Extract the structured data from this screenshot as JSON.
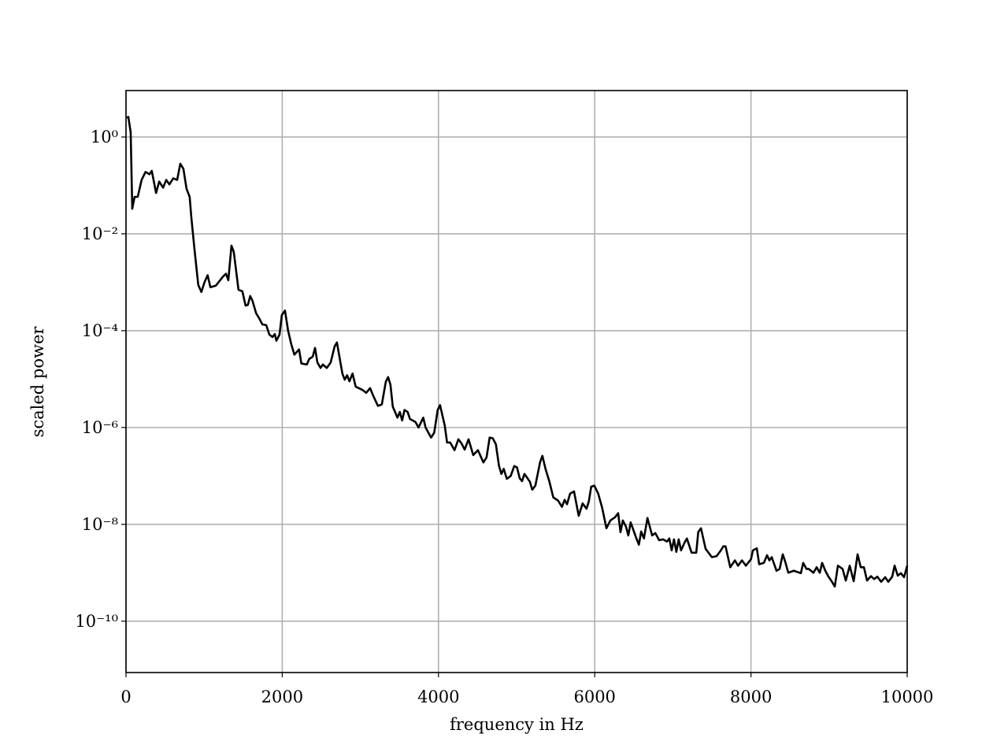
{
  "chart_data": {
    "type": "line",
    "xlabel": "frequency in Hz",
    "ylabel": "scaled power",
    "color": "#000000",
    "log_y": true,
    "grid": true,
    "xlim": [
      0,
      10000
    ],
    "xticks": [
      0,
      2000,
      4000,
      6000,
      8000,
      10000
    ],
    "ylim": [
      8.7e-12,
      9.1
    ],
    "yticks": [
      {
        "value": 1,
        "label": "10⁰"
      },
      {
        "value": 0.01,
        "label": "10⁻²"
      },
      {
        "value": 0.0001,
        "label": "10⁻⁴"
      },
      {
        "value": 1e-06,
        "label": "10⁻⁶"
      },
      {
        "value": 1e-08,
        "label": "10⁻⁸"
      },
      {
        "value": 1e-10,
        "label": "10⁻¹⁰"
      }
    ],
    "x": [
      10,
      30,
      60,
      80,
      110,
      150,
      200,
      250,
      300,
      330,
      385,
      425,
      475,
      515,
      555,
      605,
      655,
      695,
      735,
      775,
      815,
      835,
      875,
      925,
      965,
      1005,
      1045,
      1080,
      1150,
      1240,
      1280,
      1310,
      1350,
      1380,
      1440,
      1490,
      1530,
      1560,
      1590,
      1620,
      1665,
      1705,
      1745,
      1795,
      1835,
      1875,
      1905,
      1925,
      1965,
      1995,
      2035,
      2075,
      2115,
      2155,
      2215,
      2245,
      2315,
      2345,
      2390,
      2420,
      2450,
      2490,
      2520,
      2570,
      2620,
      2670,
      2700,
      2770,
      2800,
      2830,
      2860,
      2900,
      2940,
      3025,
      3075,
      3125,
      3165,
      3225,
      3275,
      3325,
      3355,
      3385,
      3415,
      3475,
      3505,
      3535,
      3565,
      3605,
      3635,
      3705,
      3745,
      3805,
      3835,
      3905,
      3945,
      3990,
      4020,
      4080,
      4110,
      4150,
      4205,
      4255,
      4295,
      4335,
      4385,
      4445,
      4505,
      4575,
      4615,
      4655,
      4695,
      4735,
      4775,
      4805,
      4835,
      4875,
      4925,
      4970,
      5005,
      5040,
      5070,
      5100,
      5170,
      5200,
      5240,
      5300,
      5330,
      5370,
      5420,
      5470,
      5530,
      5580,
      5615,
      5645,
      5685,
      5735,
      5795,
      5845,
      5895,
      5925,
      5955,
      5995,
      6045,
      6095,
      6150,
      6200,
      6260,
      6300,
      6330,
      6360,
      6400,
      6430,
      6460,
      6530,
      6565,
      6595,
      6630,
      6675,
      6735,
      6775,
      6825,
      6875,
      6925,
      6955,
      6985,
      7015,
      7045,
      7075,
      7105,
      7150,
      7180,
      7240,
      7300,
      7325,
      7360,
      7420,
      7500,
      7560,
      7615,
      7645,
      7675,
      7735,
      7795,
      7835,
      7885,
      7935,
      8000,
      8025,
      8075,
      8105,
      8165,
      8206,
      8236,
      8266,
      8327,
      8367,
      8407,
      8438,
      8478,
      8548,
      8639,
      8669,
      8710,
      8740,
      8800,
      8841,
      8881,
      8911,
      8952,
      8992,
      9032,
      9073,
      9113,
      9173,
      9214,
      9264,
      9315,
      9365,
      9405,
      9446,
      9486,
      9536,
      9577,
      9617,
      9667,
      9718,
      9758,
      9808,
      9839,
      9879,
      9919,
      9960,
      10000
    ],
    "values": [
      2.5,
      2.6,
      1.25,
      0.033,
      0.058,
      0.058,
      0.13,
      0.19,
      0.17,
      0.2,
      0.07,
      0.12,
      0.09,
      0.13,
      0.105,
      0.14,
      0.13,
      0.28,
      0.22,
      0.085,
      0.058,
      0.023,
      0.0051,
      0.00088,
      0.00063,
      0.001,
      0.0014,
      0.00079,
      0.00085,
      0.0013,
      0.0015,
      0.0011,
      0.0057,
      0.0042,
      0.0007,
      0.00065,
      0.00033,
      0.00034,
      0.00052,
      0.00041,
      0.00023,
      0.00018,
      0.000135,
      0.00013,
      8.3e-05,
      7.4e-05,
      8.5e-05,
      6.2e-05,
      8.3e-05,
      0.00021,
      0.00026,
      0.0001,
      5.3e-05,
      3.2e-05,
      4.1e-05,
      2.1e-05,
      2e-05,
      2.6e-05,
      2.9e-05,
      4.4e-05,
      2.2e-05,
      1.7e-05,
      2e-05,
      1.7e-05,
      2.2e-05,
      4.7e-05,
      5.7e-05,
      1.3e-05,
      9.7e-06,
      1.2e-05,
      9e-06,
      1.3e-05,
      7e-06,
      6e-06,
      5.2e-06,
      6.5e-06,
      4.5e-06,
      2.8e-06,
      3e-06,
      8.7e-06,
      1.1e-05,
      7.7e-06,
      2.7e-06,
      1.6e-06,
      2.1e-06,
      1.4e-06,
      2.3e-06,
      2.1e-06,
      1.5e-06,
      1.3e-06,
      1e-06,
      1.6e-06,
      1e-06,
      6.2e-07,
      7.8e-07,
      2.3e-06,
      2.9e-06,
      1.1e-06,
      4.9e-07,
      4.9e-07,
      3.4e-07,
      5.7e-07,
      4.7e-07,
      3.5e-07,
      5.7e-07,
      2.7e-07,
      3.4e-07,
      1.9e-07,
      2.4e-07,
      6.2e-07,
      6e-07,
      4.5e-07,
      1.6e-07,
      1.1e-07,
      1.4e-07,
      8.7e-08,
      1e-07,
      1.6e-07,
      1.5e-07,
      8.9e-08,
      7.8e-08,
      1.1e-07,
      7.6e-08,
      5.2e-08,
      6.3e-08,
      1.9e-07,
      2.6e-07,
      1.4e-07,
      7.6e-08,
      3.6e-08,
      3.1e-08,
      2.3e-08,
      3.2e-08,
      2.6e-08,
      4.3e-08,
      4.8e-08,
      1.5e-08,
      2.7e-08,
      2.1e-08,
      3e-08,
      6e-08,
      6.3e-08,
      4.3e-08,
      2.2e-08,
      8.3e-09,
      1.2e-08,
      1.4e-08,
      1.7e-08,
      6.9e-09,
      1.2e-08,
      9e-09,
      5.9e-09,
      1.1e-08,
      5.3e-09,
      3.8e-09,
      7.1e-09,
      5.1e-09,
      1.35e-08,
      5.9e-09,
      6.6e-09,
      4.7e-09,
      4.9e-09,
      4.4e-09,
      5.1e-09,
      2.9e-09,
      4.9e-09,
      2.7e-09,
      4.9e-09,
      2.9e-09,
      4.2e-09,
      5.1e-09,
      2.6e-09,
      2.6e-09,
      6.9e-09,
      8.3e-09,
      3.1e-09,
      2.1e-09,
      2.2e-09,
      2.9e-09,
      3.5e-09,
      3.5e-09,
      1.3e-09,
      1.8e-09,
      1.4e-09,
      1.8e-09,
      1.4e-09,
      1.9e-09,
      2.9e-09,
      3.2e-09,
      1.5e-09,
      1.6e-09,
      2.3e-09,
      1.8e-09,
      2.1e-09,
      1.1e-09,
      1.2e-09,
      2.4e-09,
      1.7e-09,
      1e-09,
      1.1e-09,
      9.8e-10,
      1.6e-09,
      1.2e-09,
      1.2e-09,
      1e-09,
      1.3e-09,
      1e-09,
      1.6e-09,
      1.1e-09,
      8.3e-10,
      6.7e-10,
      5.2e-10,
      1.4e-09,
      1.2e-09,
      6.9e-10,
      1.4e-09,
      6.7e-10,
      2.4e-09,
      1.3e-09,
      1.3e-09,
      6.9e-10,
      8.5e-10,
      7.4e-10,
      8.3e-10,
      6.5e-10,
      8.1e-10,
      6.5e-10,
      8.3e-10,
      1.4e-09,
      8.7e-10,
      9.8e-10,
      8.1e-10,
      1.4e-09
    ]
  }
}
